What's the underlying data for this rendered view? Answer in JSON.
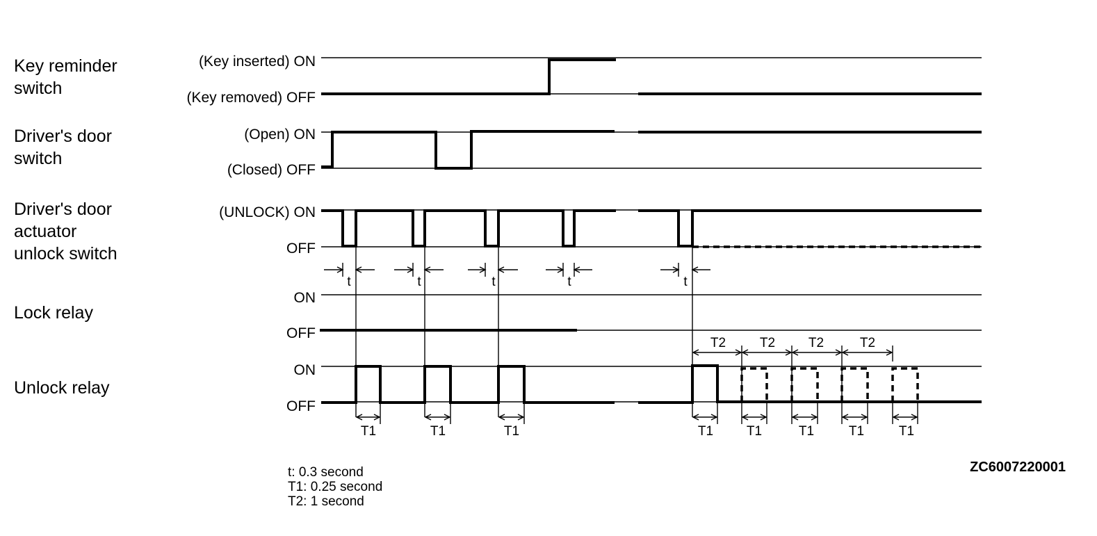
{
  "signals": [
    {
      "name": "key-reminder-switch",
      "label_lines": [
        "Key reminder",
        "switch"
      ],
      "on_label": "(Key inserted) ON",
      "off_label": "(Key removed) OFF"
    },
    {
      "name": "drivers-door-switch",
      "label_lines": [
        "Driver's door",
        "switch"
      ],
      "on_label": "(Open) ON",
      "off_label": "(Closed) OFF"
    },
    {
      "name": "drivers-door-actuator-unlock-switch",
      "label_lines": [
        "Driver's door",
        "actuator",
        "unlock switch"
      ],
      "on_label": "(UNLOCK) ON",
      "off_label": "OFF"
    },
    {
      "name": "lock-relay",
      "label_lines": [
        "Lock relay"
      ],
      "on_label": "ON",
      "off_label": "OFF"
    },
    {
      "name": "unlock-relay",
      "label_lines": [
        "Unlock relay"
      ],
      "on_label": "ON",
      "off_label": "OFF"
    }
  ],
  "timing_labels": {
    "t": "t",
    "t1": "T1",
    "t2": "T2"
  },
  "legend": [
    "t: 0.3 second",
    "T1: 0.25 second",
    "T2: 1 second"
  ],
  "figure_code": "ZC6007220001",
  "colors": {
    "ink": "#000000",
    "background": "#ffffff"
  }
}
